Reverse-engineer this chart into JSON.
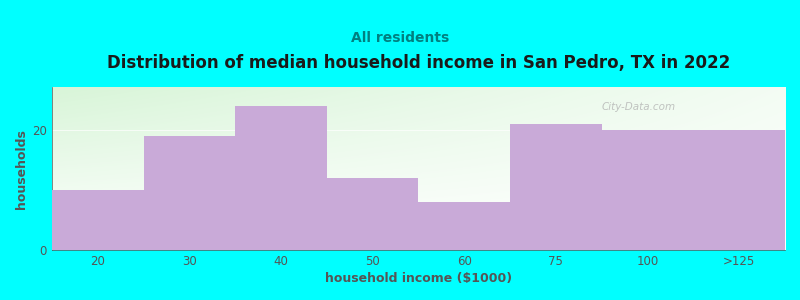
{
  "title": "Distribution of median household income in San Pedro, TX in 2022",
  "subtitle": "All residents",
  "xlabel": "household income ($1000)",
  "ylabel": "households",
  "bg_color": "#00FFFF",
  "bar_color": "#c9aad8",
  "categories": [
    "20",
    "30",
    "40",
    "50",
    "60",
    "75",
    "100",
    ">125"
  ],
  "values": [
    10,
    19,
    24,
    12,
    8,
    21,
    20,
    20
  ],
  "ylim": [
    0,
    27
  ],
  "yticks": [
    0,
    20
  ],
  "title_fontsize": 12,
  "subtitle_fontsize": 10,
  "label_fontsize": 9,
  "tick_fontsize": 8.5,
  "title_color": "#1a1a1a",
  "subtitle_color": "#008080",
  "axis_color": "#555555",
  "watermark_text": "City-Data.com",
  "gradient_top_left": "#d8f5d8",
  "gradient_top_right": "#f5fff5",
  "gradient_bottom": "#ffffff"
}
